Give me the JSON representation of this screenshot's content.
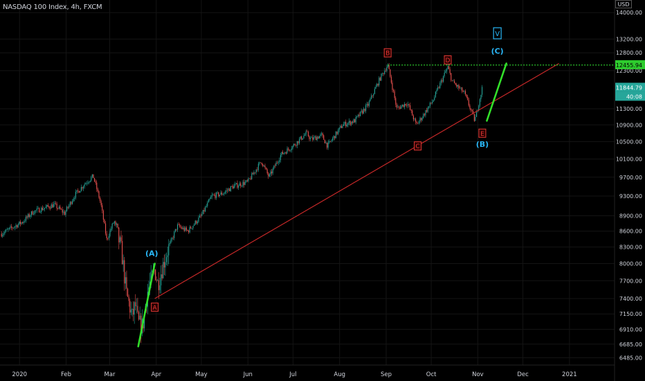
{
  "header": {
    "symbol_line": "NASDAQ 100 Index, 4h, FXCM",
    "currency": "USD"
  },
  "colors": {
    "background": "#000000",
    "up_candle": "#26a69a",
    "down_candle": "#ef5350",
    "trendline": "#c62828",
    "projection": "#33e02a",
    "hline": "#2ecc2e",
    "count_red": "#e53935",
    "count_cyan": "#29b6f6"
  },
  "chart_data": {
    "type": "line",
    "y_axis": {
      "ticks": [
        14000,
        13200,
        12800,
        12300,
        11300,
        10900,
        10500,
        10100,
        9700,
        9300,
        8900,
        8600,
        8300,
        8000,
        7700,
        7400,
        7150,
        6910,
        6685,
        6485
      ],
      "tick_labels": [
        "14000.00",
        "13200.00",
        "12800.00",
        "12300.00",
        "11300.00",
        "10900.00",
        "10500.00",
        "10100.00",
        "9700.00",
        "9300.00",
        "8900.00",
        "8600.00",
        "8300.00",
        "8000.00",
        "7700.00",
        "7400.00",
        "7150.00",
        "6910.00",
        "6685.00",
        "6485.00"
      ],
      "scale": "log"
    },
    "x_axis": {
      "ticks": [
        "2020-01-01",
        "2020-02-01",
        "2020-03-01",
        "2020-04-01",
        "2020-05-01",
        "2020-06-01",
        "2020-07-01",
        "2020-08-01",
        "2020-09-01",
        "2020-10-01",
        "2020-11-01",
        "2020-12-01",
        "2021-01-01"
      ],
      "tick_labels": [
        "2020",
        "Feb",
        "Mar",
        "Apr",
        "May",
        "Jun",
        "Jul",
        "Aug",
        "Sep",
        "Oct",
        "Nov",
        "Dec",
        "2021"
      ]
    },
    "series": [
      {
        "x": [
          "2019-12-20",
          "2020-01-03",
          "2020-01-10",
          "2020-01-17",
          "2020-01-24",
          "2020-01-31",
          "2020-02-07",
          "2020-02-14",
          "2020-02-19",
          "2020-02-24",
          "2020-02-28",
          "2020-03-04",
          "2020-03-09",
          "2020-03-12",
          "2020-03-16",
          "2020-03-18",
          "2020-03-20",
          "2020-03-23",
          "2020-03-26",
          "2020-03-31",
          "2020-04-02",
          "2020-04-08",
          "2020-04-15",
          "2020-04-22",
          "2020-05-01",
          "2020-05-08",
          "2020-05-15",
          "2020-05-22",
          "2020-06-01",
          "2020-06-10",
          "2020-06-15",
          "2020-06-23",
          "2020-07-01",
          "2020-07-10",
          "2020-07-13",
          "2020-07-20",
          "2020-07-24",
          "2020-08-03",
          "2020-08-11",
          "2020-08-20",
          "2020-08-28",
          "2020-09-02",
          "2020-09-08",
          "2020-09-15",
          "2020-09-21",
          "2020-09-25",
          "2020-10-02",
          "2020-10-12",
          "2020-10-15",
          "2020-10-23",
          "2020-10-30",
          "2020-11-04"
        ],
        "y": [
          8550,
          8780,
          8980,
          9050,
          9120,
          8950,
          9330,
          9580,
          9720,
          9150,
          8440,
          8800,
          8200,
          7500,
          7100,
          7300,
          7000,
          6960,
          7500,
          7900,
          7650,
          8200,
          8700,
          8600,
          8900,
          9300,
          9350,
          9500,
          9600,
          10050,
          9700,
          10200,
          10400,
          10700,
          10550,
          10650,
          10400,
          10900,
          11000,
          11400,
          12100,
          12460,
          11300,
          11450,
          10900,
          11100,
          11500,
          12400,
          12000,
          11700,
          11000,
          11850
        ]
      }
    ],
    "last_price": "11844.79",
    "countdown": "40:08",
    "hline_label": "12455.94",
    "hline_value": 12455.94,
    "trendline": {
      "x": [
        "2020-03-31",
        "2020-12-25"
      ],
      "y": [
        7400,
        12500
      ]
    },
    "projections": [
      {
        "x": [
          "2020-03-20",
          "2020-03-31"
        ],
        "y": [
          6650,
          8000
        ]
      },
      {
        "x": [
          "2020-11-07",
          "2020-11-20"
        ],
        "y": [
          11000,
          12500
        ]
      }
    ],
    "labels": [
      {
        "text": "B",
        "style": "box-red",
        "x": "2020-09-02",
        "y": 12800
      },
      {
        "text": "D",
        "style": "box-red",
        "x": "2020-10-12",
        "y": 12600
      },
      {
        "text": "A",
        "style": "box-red",
        "x": "2020-03-31",
        "y": 7260
      },
      {
        "text": "C",
        "style": "box-red",
        "x": "2020-09-22",
        "y": 10400
      },
      {
        "text": "E",
        "style": "box-red",
        "x": "2020-11-04",
        "y": 10700
      },
      {
        "text": "(A)",
        "style": "cyan",
        "x": "2020-03-29",
        "y": 8190
      },
      {
        "text": "(B)",
        "style": "cyan",
        "x": "2020-11-04",
        "y": 10440
      },
      {
        "text": "(C)",
        "style": "cyan",
        "x": "2020-11-14",
        "y": 12850
      },
      {
        "text": "V",
        "style": "box-cyan",
        "x": "2020-11-14",
        "y": 13370
      }
    ]
  }
}
